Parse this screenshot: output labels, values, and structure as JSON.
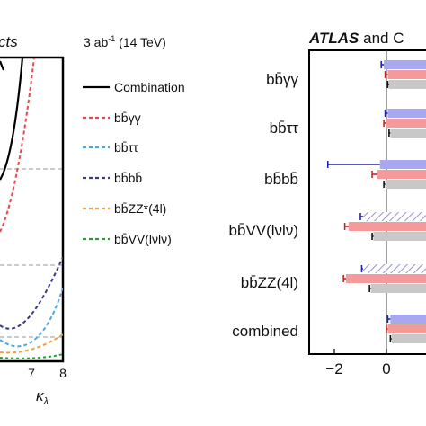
{
  "colors": {
    "combination": "#000000",
    "bbyy": "#e8474d",
    "bbtautau": "#48a8e8",
    "bbbb": "#3a3a8c",
    "bbzz": "#f0a040",
    "bbvv": "#2e9a3a",
    "bar_blue": "#a8a8f0",
    "bar_red": "#f49a9a",
    "bar_grey": "#c8c8c8",
    "err_blue": "#2222aa",
    "err_red": "#cc2222",
    "err_black": "#111111"
  },
  "left_panel": {
    "title_fragment": "cts",
    "energy_label": "3 ab",
    "energy_sup": "-1",
    "energy_rest": " (14 TeV)",
    "xlabel": "κ",
    "xlabel_sub": "λ",
    "tick_labels": [
      "7",
      "8"
    ],
    "legend": [
      {
        "label": "Combination",
        "key": "combination",
        "dash": false
      },
      {
        "label": "bb̄γγ",
        "key": "bbyy",
        "dash": true
      },
      {
        "label": "bb̄ττ",
        "key": "bbtautau",
        "dash": true
      },
      {
        "label": "bb̄bb̄",
        "key": "bbbb",
        "dash": true
      },
      {
        "label": "bb̄ZZ*(4l)",
        "key": "bbzz",
        "dash": true
      },
      {
        "label": "bb̄VV(lνlν)",
        "key": "bbvv",
        "dash": true
      }
    ]
  },
  "right_panel": {
    "title_bold": "ATLAS",
    "title_rest": " and C",
    "tick_labels": [
      "−2",
      "0"
    ],
    "categories": [
      "bb̄γγ",
      "bb̄ττ",
      "bb̄bb̄",
      "bb̄VV(lνlν)",
      "bb̄ZZ(4l)",
      "combined"
    ]
  },
  "chart_data": [
    {
      "type": "line",
      "xlabel": "κλ",
      "xlim": [
        6,
        8
      ],
      "series": [
        {
          "name": "Combination"
        },
        {
          "name": "bb̄γγ"
        },
        {
          "name": "bb̄ττ"
        },
        {
          "name": "bb̄bb̄"
        },
        {
          "name": "bb̄ZZ*(4l)"
        },
        {
          "name": "bb̄VV(lνlν)"
        }
      ]
    },
    {
      "type": "bar",
      "orientation": "horizontal",
      "categories": [
        "bb̄γγ",
        "bb̄ττ",
        "bb̄bb̄",
        "bb̄VV(lνlν)",
        "bb̄ZZ(4l)",
        "combined"
      ],
      "xlim": [
        -2.9,
        0.8
      ],
      "series": [
        {
          "values": [
            -0.1,
            0.05,
            -0.25,
            -0.9,
            -0.9,
            0.15
          ],
          "errors": [
            0.1,
            0.1,
            2.0,
            0.1,
            0.05,
            0.1
          ],
          "hatched_rows": [
            3,
            4
          ]
        },
        {
          "values": [
            0.05,
            0.0,
            -0.35,
            -1.45,
            -1.55,
            0.05
          ],
          "errors": [
            0.1,
            0.1,
            0.2,
            0.15,
            0.1,
            0.05
          ]
        },
        {
          "values": [
            0.1,
            0.15,
            -0.05,
            -0.5,
            -0.6,
            0.2
          ],
          "errors": [
            0.05,
            0.05,
            0.05,
            0.05,
            0.05,
            0.05
          ]
        }
      ]
    }
  ]
}
